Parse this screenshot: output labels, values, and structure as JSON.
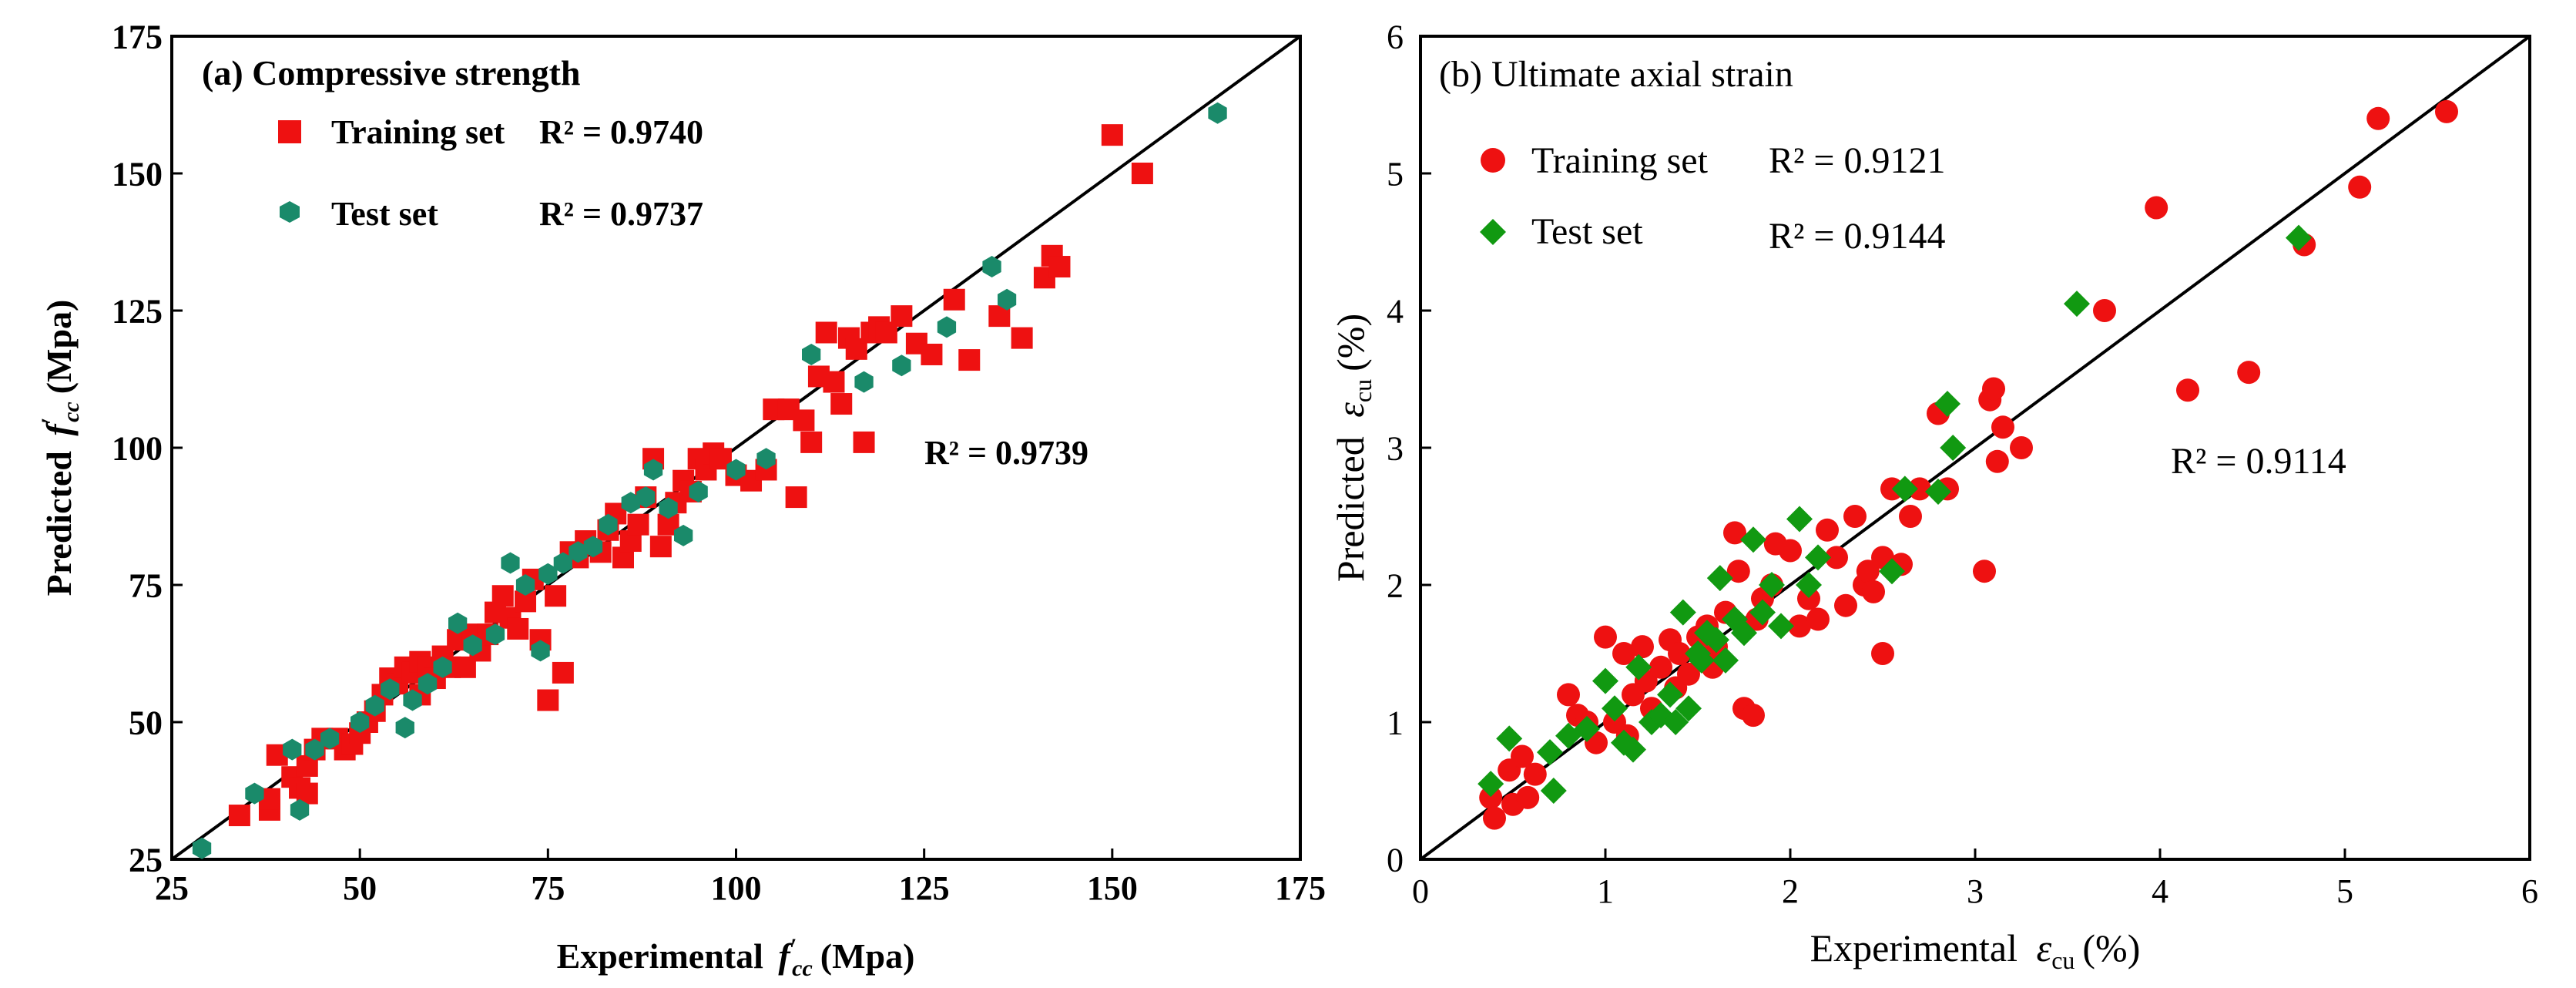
{
  "chart_data": [
    {
      "type": "scatter",
      "panel": "left",
      "title": "(a) Compressive strength",
      "xlabel": "Experimental f'cc (Mpa)",
      "ylabel": "Predicted f'cc (Mpa)",
      "xlim": [
        25,
        175
      ],
      "ylim": [
        25,
        175
      ],
      "xticks": [
        "25",
        "50",
        "75",
        "100",
        "125",
        "150",
        "175"
      ],
      "yticks": [
        "25",
        "50",
        "75",
        "100",
        "125",
        "150",
        "175"
      ],
      "overall_r2": "R² = 0.9739",
      "colors": {
        "train": "#ee1111",
        "test": "#1a8a6a",
        "line": "#000000"
      },
      "legend": [
        {
          "name": "Training set",
          "r2": "R² = 0.9740"
        },
        {
          "name": "Test set",
          "r2": "R² = 0.9737"
        }
      ],
      "series": [
        {
          "name": "Training set",
          "marker": "square",
          "points": [
            [
              34,
              33
            ],
            [
              38,
              34
            ],
            [
              38,
              36
            ],
            [
              39,
              44
            ],
            [
              41,
              40
            ],
            [
              42,
              38
            ],
            [
              43,
              42
            ],
            [
              43,
              37
            ],
            [
              44,
              45
            ],
            [
              45,
              47
            ],
            [
              47,
              47
            ],
            [
              48,
              45
            ],
            [
              49,
              46
            ],
            [
              50,
              48
            ],
            [
              51,
              50
            ],
            [
              52,
              52
            ],
            [
              53,
              55
            ],
            [
              54,
              58
            ],
            [
              55,
              57
            ],
            [
              56,
              60
            ],
            [
              57,
              59
            ],
            [
              58,
              61
            ],
            [
              58,
              55
            ],
            [
              59,
              60
            ],
            [
              60,
              58
            ],
            [
              61,
              62
            ],
            [
              62,
              60
            ],
            [
              63,
              65
            ],
            [
              64,
              60
            ],
            [
              65,
              66
            ],
            [
              66,
              63
            ],
            [
              67,
              66
            ],
            [
              68,
              70
            ],
            [
              69,
              73
            ],
            [
              70,
              69
            ],
            [
              71,
              67
            ],
            [
              72,
              72
            ],
            [
              73,
              76
            ],
            [
              74,
              65
            ],
            [
              75,
              54
            ],
            [
              76,
              73
            ],
            [
              77,
              59
            ],
            [
              78,
              81
            ],
            [
              79,
              80
            ],
            [
              80,
              83
            ],
            [
              82,
              81
            ],
            [
              83,
              85
            ],
            [
              84,
              88
            ],
            [
              85,
              80
            ],
            [
              86,
              83
            ],
            [
              87,
              86
            ],
            [
              88,
              91
            ],
            [
              89,
              98
            ],
            [
              90,
              82
            ],
            [
              91,
              86
            ],
            [
              92,
              90
            ],
            [
              93,
              94
            ],
            [
              94,
              92
            ],
            [
              95,
              98
            ],
            [
              96,
              96
            ],
            [
              97,
              99
            ],
            [
              98,
              98
            ],
            [
              100,
              95
            ],
            [
              102,
              94
            ],
            [
              104,
              96
            ],
            [
              105,
              107
            ],
            [
              107,
              107
            ],
            [
              108,
              91
            ],
            [
              109,
              105
            ],
            [
              110,
              101
            ],
            [
              111,
              113
            ],
            [
              112,
              121
            ],
            [
              113,
              112
            ],
            [
              114,
              108
            ],
            [
              115,
              120
            ],
            [
              116,
              118
            ],
            [
              117,
              101
            ],
            [
              118,
              121
            ],
            [
              119,
              122
            ],
            [
              120,
              121
            ],
            [
              122,
              124
            ],
            [
              124,
              119
            ],
            [
              126,
              117
            ],
            [
              129,
              127
            ],
            [
              131,
              116
            ],
            [
              135,
              124
            ],
            [
              138,
              120
            ],
            [
              141,
              131
            ],
            [
              142,
              135
            ],
            [
              143,
              133
            ],
            [
              150,
              157
            ],
            [
              154,
              150
            ]
          ]
        },
        {
          "name": "Test set",
          "marker": "hexagon",
          "points": [
            [
              29,
              27
            ],
            [
              36,
              37
            ],
            [
              41,
              45
            ],
            [
              42,
              34
            ],
            [
              44,
              45
            ],
            [
              46,
              47
            ],
            [
              50,
              50
            ],
            [
              52,
              53
            ],
            [
              54,
              56
            ],
            [
              56,
              49
            ],
            [
              57,
              54
            ],
            [
              59,
              57
            ],
            [
              61,
              60
            ],
            [
              63,
              68
            ],
            [
              65,
              64
            ],
            [
              68,
              66
            ],
            [
              70,
              79
            ],
            [
              72,
              75
            ],
            [
              74,
              63
            ],
            [
              75,
              77
            ],
            [
              77,
              79
            ],
            [
              79,
              81
            ],
            [
              81,
              82
            ],
            [
              83,
              86
            ],
            [
              86,
              90
            ],
            [
              88,
              91
            ],
            [
              89,
              96
            ],
            [
              91,
              89
            ],
            [
              93,
              84
            ],
            [
              95,
              92
            ],
            [
              100,
              96
            ],
            [
              104,
              98
            ],
            [
              110,
              117
            ],
            [
              117,
              112
            ],
            [
              122,
              115
            ],
            [
              128,
              122
            ],
            [
              134,
              133
            ],
            [
              136,
              127
            ],
            [
              164,
              161
            ]
          ]
        }
      ]
    },
    {
      "type": "scatter",
      "panel": "right",
      "title": "(b) Ultimate axial strain",
      "xlabel": "Experimental εcu (%)",
      "ylabel": "Predicted εcu (%)",
      "xlim": [
        0,
        6
      ],
      "ylim": [
        0,
        6
      ],
      "xticks": [
        "0",
        "1",
        "2",
        "3",
        "4",
        "5",
        "6"
      ],
      "yticks": [
        "0",
        "1",
        "2",
        "3",
        "4",
        "5",
        "6"
      ],
      "overall_r2": "R² = 0.9114",
      "colors": {
        "train": "#ee1111",
        "test": "#119911",
        "line": "#000000"
      },
      "legend": [
        {
          "name": "Training set",
          "r2": "R² = 0.9121"
        },
        {
          "name": "Test set",
          "r2": "R² = 0.9144"
        }
      ],
      "series": [
        {
          "name": "Training set",
          "marker": "circle",
          "points": [
            [
              0.38,
              0.45
            ],
            [
              0.4,
              0.3
            ],
            [
              0.48,
              0.65
            ],
            [
              0.5,
              0.4
            ],
            [
              0.55,
              0.75
            ],
            [
              0.58,
              0.45
            ],
            [
              0.62,
              0.62
            ],
            [
              0.8,
              1.2
            ],
            [
              0.85,
              1.05
            ],
            [
              0.9,
              1.0
            ],
            [
              0.95,
              0.85
            ],
            [
              1.0,
              1.62
            ],
            [
              1.05,
              1.0
            ],
            [
              1.1,
              1.5
            ],
            [
              1.12,
              0.9
            ],
            [
              1.15,
              1.2
            ],
            [
              1.2,
              1.55
            ],
            [
              1.22,
              1.3
            ],
            [
              1.25,
              1.1
            ],
            [
              1.3,
              1.4
            ],
            [
              1.35,
              1.6
            ],
            [
              1.38,
              1.25
            ],
            [
              1.4,
              1.5
            ],
            [
              1.45,
              1.35
            ],
            [
              1.5,
              1.62
            ],
            [
              1.55,
              1.7
            ],
            [
              1.58,
              1.4
            ],
            [
              1.6,
              1.55
            ],
            [
              1.65,
              1.8
            ],
            [
              1.7,
              2.38
            ],
            [
              1.72,
              2.1
            ],
            [
              1.75,
              1.1
            ],
            [
              1.8,
              1.05
            ],
            [
              1.82,
              1.75
            ],
            [
              1.85,
              1.9
            ],
            [
              1.9,
              2.0
            ],
            [
              1.92,
              2.3
            ],
            [
              2.0,
              2.25
            ],
            [
              2.05,
              1.7
            ],
            [
              2.1,
              1.9
            ],
            [
              2.15,
              1.75
            ],
            [
              2.2,
              2.4
            ],
            [
              2.25,
              2.2
            ],
            [
              2.3,
              1.85
            ],
            [
              2.35,
              2.5
            ],
            [
              2.4,
              2.0
            ],
            [
              2.42,
              2.1
            ],
            [
              2.45,
              1.95
            ],
            [
              2.5,
              2.2
            ],
            [
              2.5,
              1.5
            ],
            [
              2.55,
              2.7
            ],
            [
              2.6,
              2.15
            ],
            [
              2.65,
              2.5
            ],
            [
              2.7,
              2.7
            ],
            [
              2.8,
              3.25
            ],
            [
              2.85,
              2.7
            ],
            [
              3.05,
              2.1
            ],
            [
              3.08,
              3.35
            ],
            [
              3.1,
              3.43
            ],
            [
              3.12,
              2.9
            ],
            [
              3.15,
              3.15
            ],
            [
              3.25,
              3.0
            ],
            [
              3.7,
              4.0
            ],
            [
              3.98,
              4.75
            ],
            [
              4.15,
              3.42
            ],
            [
              4.48,
              3.55
            ],
            [
              4.78,
              4.48
            ],
            [
              5.08,
              4.9
            ],
            [
              5.18,
              5.4
            ],
            [
              5.55,
              5.45
            ]
          ]
        },
        {
          "name": "Test set",
          "marker": "diamond",
          "points": [
            [
              0.38,
              0.55
            ],
            [
              0.48,
              0.88
            ],
            [
              0.7,
              0.78
            ],
            [
              0.72,
              0.5
            ],
            [
              0.8,
              0.9
            ],
            [
              0.9,
              0.95
            ],
            [
              1.0,
              1.3
            ],
            [
              1.05,
              1.1
            ],
            [
              1.1,
              0.85
            ],
            [
              1.15,
              0.8
            ],
            [
              1.18,
              1.4
            ],
            [
              1.25,
              1.0
            ],
            [
              1.3,
              1.05
            ],
            [
              1.35,
              1.2
            ],
            [
              1.38,
              1.0
            ],
            [
              1.42,
              1.8
            ],
            [
              1.45,
              1.1
            ],
            [
              1.5,
              1.5
            ],
            [
              1.52,
              1.45
            ],
            [
              1.55,
              1.65
            ],
            [
              1.6,
              1.6
            ],
            [
              1.62,
              2.05
            ],
            [
              1.65,
              1.45
            ],
            [
              1.7,
              1.75
            ],
            [
              1.75,
              1.65
            ],
            [
              1.8,
              2.33
            ],
            [
              1.85,
              1.8
            ],
            [
              1.9,
              2.0
            ],
            [
              1.95,
              1.7
            ],
            [
              2.05,
              2.48
            ],
            [
              2.1,
              2.0
            ],
            [
              2.15,
              2.2
            ],
            [
              2.55,
              2.1
            ],
            [
              2.62,
              2.7
            ],
            [
              2.8,
              2.68
            ],
            [
              2.85,
              3.32
            ],
            [
              2.88,
              3.0
            ],
            [
              3.55,
              4.05
            ],
            [
              4.75,
              4.53
            ]
          ]
        }
      ]
    }
  ],
  "panel_a": {
    "title": "(a) Compressive strength",
    "legend_train": "Training set",
    "legend_train_r2": "R² = 0.9740",
    "legend_test": "Test set",
    "legend_test_r2": "R² = 0.9737",
    "overall_r2": "R² = 0.9739",
    "xlabel_prefix": "Experimental",
    "ylabel_prefix": "Predicted",
    "axis_symbol": "f",
    "axis_prime": "′",
    "axis_sub": "cc",
    "axis_unit": "(Mpa)"
  },
  "panel_b": {
    "title": "(b) Ultimate axial strain",
    "legend_train": "Training set",
    "legend_train_r2": "R² = 0.9121",
    "legend_test": "Test set",
    "legend_test_r2": "R² = 0.9144",
    "overall_r2": "R² = 0.9114",
    "xlabel_prefix": "Experimental",
    "ylabel_prefix": "Predicted",
    "axis_symbol": "ε",
    "axis_sub": "cu",
    "axis_unit": "(%)"
  }
}
